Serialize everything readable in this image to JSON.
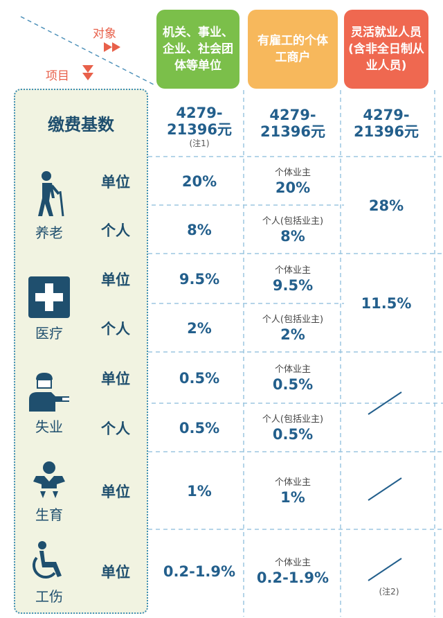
{
  "corner": {
    "object_label": "对象",
    "item_label": "项目"
  },
  "headers": {
    "col1": "机关、事业、企业、社会团体等单位",
    "col2": "有雇工的个体工商户",
    "col3": "灵活就业人员(含非全日制从业人员)"
  },
  "base": {
    "label": "缴费基数",
    "col1": "4279-21396元",
    "col1_note": "(注1)",
    "col2": "4279-21396元",
    "col3": "4279-21396元"
  },
  "categories": {
    "pension": "养老",
    "medical": "医疗",
    "unemployment": "失业",
    "maternity": "生育",
    "injury": "工伤"
  },
  "sub_labels": {
    "unit": "单位",
    "personal": "个人"
  },
  "rows": {
    "pension_unit": {
      "c1": "20%",
      "c2_note": "个体业主",
      "c2": "20%"
    },
    "pension_personal": {
      "c1": "8%",
      "c2_note": "个人(包括业主)",
      "c2": "8%"
    },
    "pension_flexible": "28%",
    "medical_unit": {
      "c1": "9.5%",
      "c2_note": "个体业主",
      "c2": "9.5%"
    },
    "medical_personal": {
      "c1": "2%",
      "c2_note": "个人(包括业主)",
      "c2": "2%"
    },
    "medical_flexible": "11.5%",
    "unemp_unit": {
      "c1": "0.5%",
      "c2_note": "个体业主",
      "c2": "0.5%"
    },
    "unemp_personal": {
      "c1": "0.5%",
      "c2_note": "个人(包括业主)",
      "c2": "0.5%"
    },
    "maternity_unit": {
      "c1": "1%",
      "c2_note": "个体业主",
      "c2": "1%"
    },
    "injury_unit": {
      "c1": "0.2-1.9%",
      "c2_note": "个体业主",
      "c2": "0.2-1.9%"
    },
    "injury_note": "(注2)"
  },
  "colors": {
    "green": "#7bbf4a",
    "orange": "#f7b85c",
    "red": "#ef6850",
    "text": "#235f8c"
  },
  "icons": {
    "pension": "elderly-person-icon",
    "medical": "medical-cross-icon",
    "unemployment": "worker-icon",
    "maternity": "baby-icon",
    "injury": "wheelchair-icon"
  }
}
